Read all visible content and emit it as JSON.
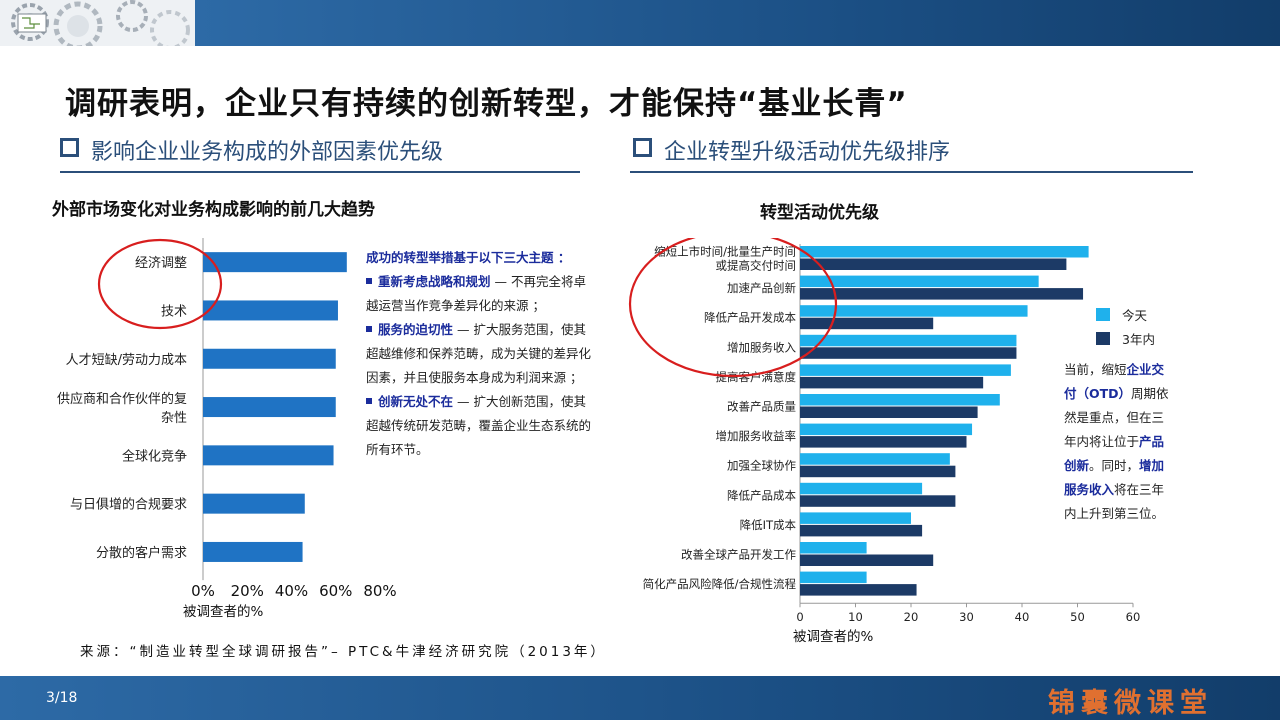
{
  "slide": {
    "title": "调研表明，企业只有持续的创新转型，才能保持“基业长青”",
    "left_section": "影响企业业务构成的外部因素优先级",
    "right_section": "企业转型升级活动优先级排序",
    "source": "来源：“制造业转型全球调研报告”– PTC&牛津经济研究院（2013年）",
    "page": "3/18",
    "brand": "锦囊微课堂",
    "colors": {
      "bar_left": "#1f73c4",
      "today": "#1fb1ec",
      "three_years": "#1c3a66",
      "circle": "#d81e1e",
      "accent_text": "#1b2c9c"
    }
  },
  "left_note": {
    "heading": "成功的转型举措基于以下三大主题 ：",
    "items": [
      {
        "bold": "重新考虑战略和规划",
        "text": " — 不再完全将卓越运营当作竞争差异化的来源 ；"
      },
      {
        "bold": "服务的迫切性",
        "text": " — 扩大服务范围，使其超越维修和保养范畴，成为关键的差异化因素，并且使服务本身成为利润来源 ；"
      },
      {
        "bold": "创新无处不在",
        "text": " — 扩大创新范围，使其超越传统研发范畴，覆盖企业生态系统的所有环节。"
      }
    ]
  },
  "right_note": {
    "p1": "当前，缩短",
    "b1": "企业交付（OTD）",
    "p2": "周期依然是重点，但在三年内将让位于",
    "b2": "产品创新",
    "p3": "。同时，",
    "b3": "增加服务收入",
    "p4": "将在三年内上升到第三位。"
  },
  "legend": {
    "today": "今天",
    "three_years": "3年内"
  },
  "chart_data": [
    {
      "type": "bar",
      "orientation": "horizontal",
      "title": "外部市场变化对业务构成影响的前几大趋势",
      "xlabel": "被调查者的%",
      "xlim": [
        0,
        80
      ],
      "x_ticks": [
        "0%",
        "20%",
        "40%",
        "60%",
        "80%"
      ],
      "categories": [
        "经济调整",
        "技术",
        "人才短缺/劳动力成本",
        "供应商和合作伙伴的复杂性",
        "全球化竞争",
        "与日俱增的合规要求",
        "分散的客户需求"
      ],
      "category_lines": [
        [
          "经济调整"
        ],
        [
          "技术"
        ],
        [
          "人才短缺/劳动力成本"
        ],
        [
          "供应商和合作伙伴的复",
          "杂性"
        ],
        [
          "全球化竞争"
        ],
        [
          "与日俱增的合规要求"
        ],
        [
          "分散的客户需求"
        ]
      ],
      "values": [
        65,
        61,
        60,
        60,
        59,
        46,
        45
      ],
      "highlighted": [
        "经济调整",
        "技术"
      ]
    },
    {
      "type": "bar",
      "orientation": "horizontal",
      "title": "转型活动优先级",
      "xlabel": "被调查者的%",
      "xlim": [
        0,
        60
      ],
      "x_ticks": [
        "0",
        "10",
        "20",
        "30",
        "40",
        "50",
        "60"
      ],
      "categories": [
        "缩短上市时间/批量生产时间或提高交付时间",
        "加速产品创新",
        "降低产品开发成本",
        "增加服务收入",
        "提高客户满意度",
        "改善产品质量",
        "增加服务收益率",
        "加强全球协作",
        "降低产品成本",
        "降低IT成本",
        "改善全球产品开发工作",
        "简化产品风险降低/合规性流程"
      ],
      "category_lines": [
        [
          "缩短上市时间/批量生产时间",
          "或提高交付时间"
        ],
        [
          "加速产品创新"
        ],
        [
          "降低产品开发成本"
        ],
        [
          "增加服务收入"
        ],
        [
          "提高客户满意度"
        ],
        [
          "改善产品质量"
        ],
        [
          "增加服务收益率"
        ],
        [
          "加强全球协作"
        ],
        [
          "降低产品成本"
        ],
        [
          "降低IT成本"
        ],
        [
          "改善全球产品开发工作"
        ],
        [
          "简化产品风险降低/合规性流程"
        ]
      ],
      "series": [
        {
          "name": "今天",
          "values": [
            52,
            43,
            41,
            39,
            38,
            36,
            31,
            27,
            22,
            20,
            12,
            12
          ]
        },
        {
          "name": "3年内",
          "values": [
            48,
            51,
            24,
            39,
            33,
            32,
            30,
            28,
            28,
            22,
            24,
            21
          ]
        }
      ],
      "highlighted": [
        "缩短上市时间/批量生产时间或提高交付时间",
        "加速产品创新",
        "降低产品开发成本",
        "增加服务收入"
      ]
    }
  ]
}
